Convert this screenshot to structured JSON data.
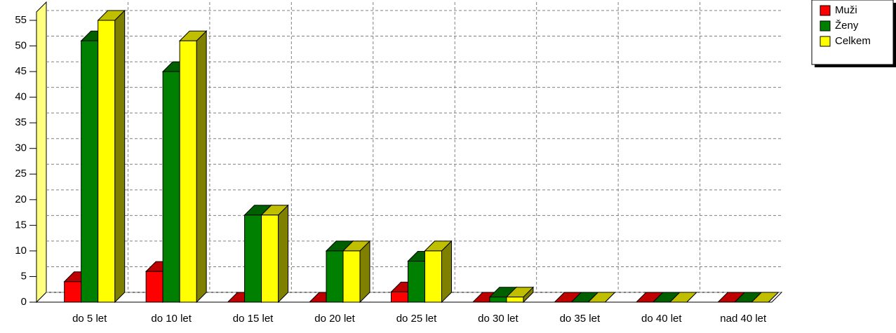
{
  "chart_data": {
    "type": "bar3d",
    "categories": [
      "do 5 let",
      "do 10 let",
      "do 15 let",
      "do 20 let",
      "do 25 let",
      "do 30 let",
      "do 35 let",
      "do 40 let",
      "nad 40 let"
    ],
    "series": [
      {
        "name": "Muži",
        "color": "#ff0000",
        "values": [
          4,
          6,
          0,
          0,
          2,
          0,
          0,
          0,
          0
        ]
      },
      {
        "name": "Ženy",
        "color": "#008000",
        "values": [
          51,
          45,
          17,
          10,
          8,
          1,
          0,
          0,
          0
        ]
      },
      {
        "name": "Celkem",
        "color": "#ffff00",
        "values": [
          55,
          51,
          17,
          10,
          10,
          1,
          0,
          0,
          0
        ]
      }
    ],
    "ylim": [
      0,
      55
    ],
    "yticks": [
      0,
      5,
      10,
      15,
      20,
      25,
      30,
      35,
      40,
      45,
      50,
      55
    ],
    "grid": true
  }
}
